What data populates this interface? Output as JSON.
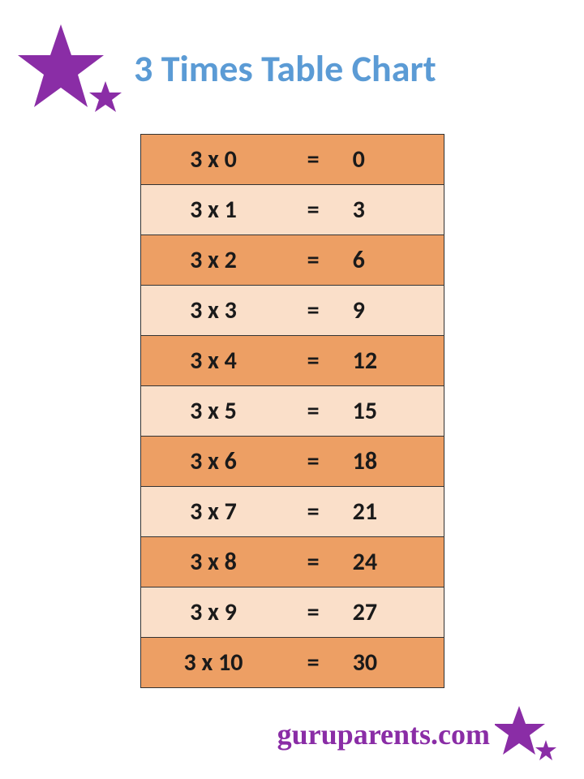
{
  "title": "3 Times Table Chart",
  "title_color": "#5b9bd5",
  "title_fontsize": 46,
  "star_color": "#8a2da6",
  "table": {
    "row_colors": [
      "#ed9f64",
      "#fadfc9"
    ],
    "text_color": "#1a1a1a",
    "border_color": "#333333",
    "fontsize": 30,
    "rows": [
      {
        "expr": "3 x 0",
        "eq": "=",
        "res": "0"
      },
      {
        "expr": "3 x 1",
        "eq": "=",
        "res": "3"
      },
      {
        "expr": "3 x 2",
        "eq": "=",
        "res": "6"
      },
      {
        "expr": "3 x 3",
        "eq": "=",
        "res": "9"
      },
      {
        "expr": "3 x 4",
        "eq": "=",
        "res": "12"
      },
      {
        "expr": "3 x 5",
        "eq": "=",
        "res": "15"
      },
      {
        "expr": "3 x 6",
        "eq": "=",
        "res": "18"
      },
      {
        "expr": "3 x 7",
        "eq": "=",
        "res": "21"
      },
      {
        "expr": "3 x 8",
        "eq": "=",
        "res": "24"
      },
      {
        "expr": "3 x 9",
        "eq": "=",
        "res": "27"
      },
      {
        "expr": "3 x 10",
        "eq": "=",
        "res": "30"
      }
    ]
  },
  "footer_text": "guruparents.com",
  "footer_color": "#8a2da6"
}
